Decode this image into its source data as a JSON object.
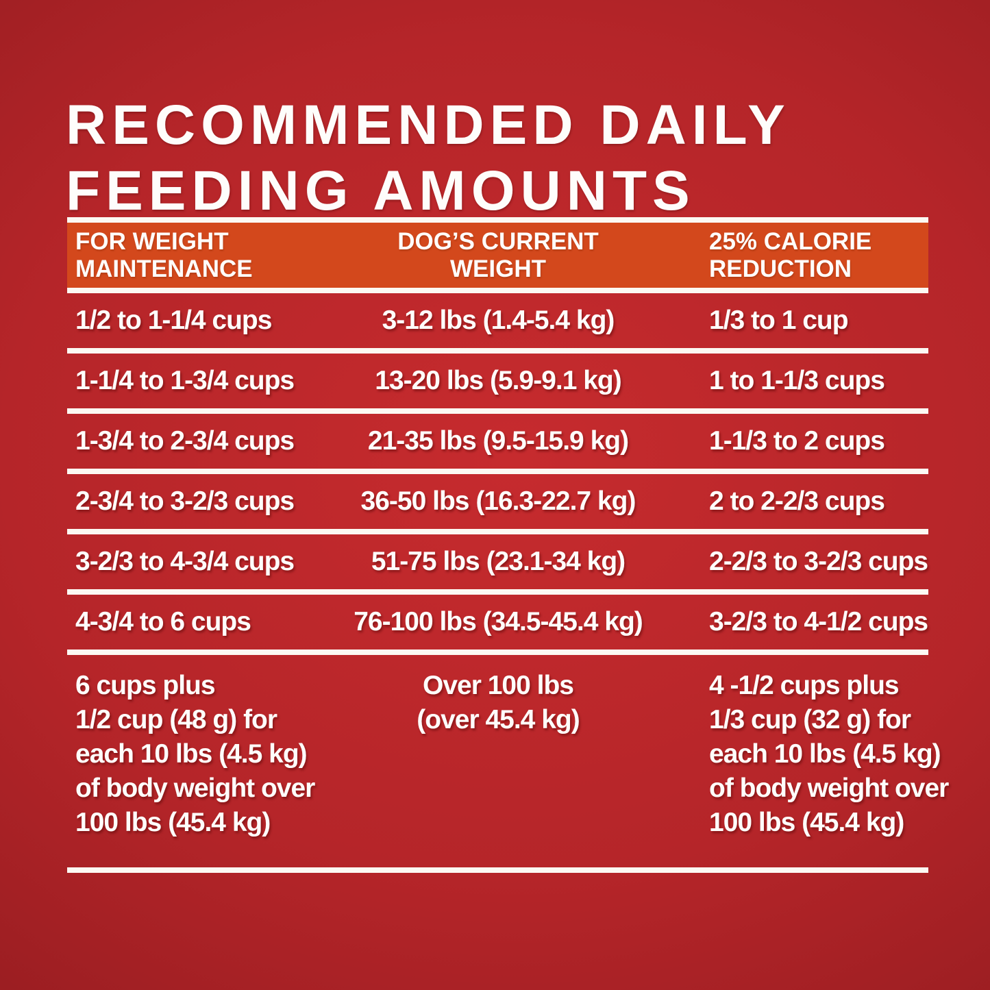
{
  "colors": {
    "background_center": "#c62b2e",
    "background_edge": "#8c191d",
    "header_orange": "#d3481c",
    "line_white": "#fcf9f3",
    "text_white": "#fefdfb"
  },
  "title": "RECOMMENDED DAILY\nFEEDING AMOUNTS",
  "table": {
    "headers": {
      "maintenance": "FOR WEIGHT\nMAINTENANCE",
      "weight": "DOG’S CURRENT\nWEIGHT",
      "reduction": "25% CALORIE\nREDUCTION"
    },
    "rows": [
      {
        "maintenance": "1/2 to 1-1/4 cups",
        "weight": "3-12 lbs (1.4-5.4 kg)",
        "reduction": "1/3 to 1 cup"
      },
      {
        "maintenance": "1-1/4 to 1-3/4 cups",
        "weight": "13-20 lbs (5.9-9.1 kg)",
        "reduction": "1 to 1-1/3 cups"
      },
      {
        "maintenance": "1-3/4 to 2-3/4 cups",
        "weight": "21-35 lbs (9.5-15.9 kg)",
        "reduction": "1-1/3 to 2 cups"
      },
      {
        "maintenance": "2-3/4 to 3-2/3 cups",
        "weight": "36-50 lbs (16.3-22.7 kg)",
        "reduction": "2 to 2-2/3 cups"
      },
      {
        "maintenance": "3-2/3 to 4-3/4 cups",
        "weight": "51-75 lbs (23.1-34 kg)",
        "reduction": "2-2/3 to 3-2/3 cups"
      },
      {
        "maintenance": "4-3/4 to 6 cups",
        "weight": "76-100 lbs (34.5-45.4 kg)",
        "reduction": "3-2/3 to 4-1/2 cups"
      },
      {
        "maintenance": "6 cups plus\n1/2 cup (48 g) for\neach 10 lbs (4.5 kg)\nof body weight over\n100 lbs (45.4 kg)",
        "weight": "Over 100 lbs\n(over 45.4 kg)",
        "reduction": "4 -1/2 cups plus\n1/3 cup (32 g) for\neach 10 lbs (4.5 kg)\nof body weight over\n100 lbs (45.4 kg)"
      }
    ]
  }
}
